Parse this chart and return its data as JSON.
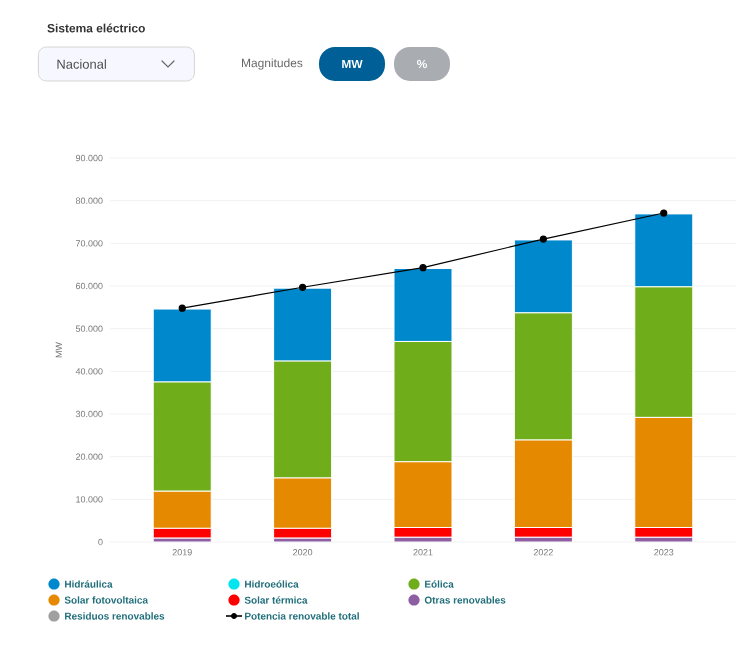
{
  "chart_data": {
    "type": "bar",
    "stacked": true,
    "annotations": [
      "Sistema eléctrico",
      "Nacional",
      "Magnitudes",
      "MW",
      "%"
    ],
    "ylabel": "MW",
    "categories": [
      "2019",
      "2020",
      "2021",
      "2022",
      "2023"
    ],
    "series": [
      {
        "name": "Residuos renovables",
        "color": "#a0a0a0",
        "values": [
          null,
          null,
          null,
          null,
          null
        ]
      },
      {
        "name": "Otras renovables",
        "color": "#8e5ea2",
        "values": [
          900,
          900,
          1100,
          1100,
          1100
        ]
      },
      {
        "name": "Solar térmica",
        "color": "#ff0000",
        "values": [
          2300,
          2300,
          2300,
          2300,
          2300
        ]
      },
      {
        "name": "Solar fotovoltaica",
        "color": "#e58a00",
        "values": [
          8700,
          11800,
          15400,
          20500,
          25800
        ]
      },
      {
        "name": "Eólica",
        "color": "#6fae1a",
        "values": [
          25600,
          27400,
          28200,
          29800,
          30600
        ]
      },
      {
        "name": "Hidroeólica",
        "color": "#00e5ee",
        "values": [
          0,
          0,
          0,
          0,
          0
        ]
      },
      {
        "name": "Hidráulica",
        "color": "#0088cc",
        "values": [
          17100,
          17100,
          17100,
          17100,
          17100
        ]
      },
      {
        "name": "Potencia renovable total",
        "type": "line",
        "color": "#000000",
        "marker": "circle",
        "values": [
          54800,
          59700,
          64300,
          71000,
          77100
        ]
      }
    ],
    "ylim": [
      0,
      90000
    ],
    "yticks": [
      {
        "value": 0,
        "label": "0"
      },
      {
        "value": 10000,
        "label": "10.000"
      },
      {
        "value": 20000,
        "label": "20.000"
      },
      {
        "value": 30000,
        "label": "30.000"
      },
      {
        "value": 40000,
        "label": "40.000"
      },
      {
        "value": 50000,
        "label": "50.000"
      },
      {
        "value": 60000,
        "label": "60.000"
      },
      {
        "value": 70000,
        "label": "70.000"
      },
      {
        "value": 80000,
        "label": "80.000"
      },
      {
        "value": 90000,
        "label": "90.000"
      }
    ],
    "grid": "y",
    "legend": "bottom"
  }
}
